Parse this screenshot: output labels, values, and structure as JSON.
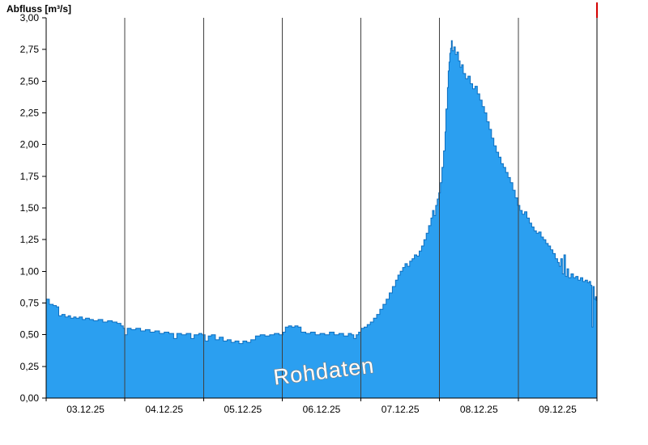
{
  "chart_data": {
    "type": "area",
    "title": "Abfluss [m³/s]",
    "watermark": "Rohdaten",
    "xlabel": "",
    "ylabel": "Abfluss [m³/s]",
    "ylim": [
      0,
      3
    ],
    "x_range_days": 7,
    "x_labels": [
      "03.12.25",
      "04.12.25",
      "05.12.25",
      "06.12.25",
      "07.12.25",
      "08.12.25",
      "09.12.25"
    ],
    "grid_days": [
      1,
      2,
      3,
      4,
      5,
      6
    ],
    "y_ticks": [
      {
        "v": 0.0,
        "label": "0,00"
      },
      {
        "v": 0.25,
        "label": "0,25"
      },
      {
        "v": 0.5,
        "label": "0,50"
      },
      {
        "v": 0.75,
        "label": "0,75"
      },
      {
        "v": 1.0,
        "label": "1,00"
      },
      {
        "v": 1.25,
        "label": "1,25"
      },
      {
        "v": 1.5,
        "label": "1,50"
      },
      {
        "v": 1.75,
        "label": "1,75"
      },
      {
        "v": 2.0,
        "label": "2,00"
      },
      {
        "v": 2.25,
        "label": "2,25"
      },
      {
        "v": 2.5,
        "label": "2,50"
      },
      {
        "v": 2.75,
        "label": "2,75"
      },
      {
        "v": 3.0,
        "label": "3,00"
      }
    ],
    "series": [
      {
        "name": "Abfluss Rohdaten",
        "unit": "m³/s",
        "points": [
          [
            0.0,
            0.78
          ],
          [
            0.04,
            0.74
          ],
          [
            0.09,
            0.73
          ],
          [
            0.13,
            0.72
          ],
          [
            0.16,
            0.65
          ],
          [
            0.2,
            0.66
          ],
          [
            0.24,
            0.64
          ],
          [
            0.28,
            0.65
          ],
          [
            0.31,
            0.63
          ],
          [
            0.35,
            0.64
          ],
          [
            0.38,
            0.63
          ],
          [
            0.42,
            0.64
          ],
          [
            0.46,
            0.62
          ],
          [
            0.5,
            0.63
          ],
          [
            0.55,
            0.62
          ],
          [
            0.6,
            0.61
          ],
          [
            0.66,
            0.62
          ],
          [
            0.72,
            0.6
          ],
          [
            0.78,
            0.61
          ],
          [
            0.84,
            0.6
          ],
          [
            0.9,
            0.59
          ],
          [
            0.95,
            0.57
          ],
          [
            0.98,
            0.55
          ],
          [
            1.0,
            0.5
          ],
          [
            1.03,
            0.55
          ],
          [
            1.08,
            0.54
          ],
          [
            1.14,
            0.55
          ],
          [
            1.2,
            0.53
          ],
          [
            1.26,
            0.54
          ],
          [
            1.32,
            0.52
          ],
          [
            1.38,
            0.53
          ],
          [
            1.44,
            0.51
          ],
          [
            1.5,
            0.52
          ],
          [
            1.56,
            0.51
          ],
          [
            1.62,
            0.47
          ],
          [
            1.66,
            0.51
          ],
          [
            1.72,
            0.5
          ],
          [
            1.78,
            0.51
          ],
          [
            1.84,
            0.47
          ],
          [
            1.88,
            0.5
          ],
          [
            1.94,
            0.51
          ],
          [
            1.98,
            0.5
          ],
          [
            2.02,
            0.45
          ],
          [
            2.06,
            0.49
          ],
          [
            2.1,
            0.5
          ],
          [
            2.15,
            0.46
          ],
          [
            2.2,
            0.48
          ],
          [
            2.25,
            0.45
          ],
          [
            2.3,
            0.46
          ],
          [
            2.35,
            0.44
          ],
          [
            2.4,
            0.45
          ],
          [
            2.45,
            0.43
          ],
          [
            2.5,
            0.45
          ],
          [
            2.55,
            0.44
          ],
          [
            2.6,
            0.46
          ],
          [
            2.66,
            0.49
          ],
          [
            2.72,
            0.5
          ],
          [
            2.78,
            0.49
          ],
          [
            2.84,
            0.5
          ],
          [
            2.9,
            0.51
          ],
          [
            2.96,
            0.5
          ],
          [
            3.01,
            0.52
          ],
          [
            3.04,
            0.56
          ],
          [
            3.08,
            0.57
          ],
          [
            3.12,
            0.56
          ],
          [
            3.16,
            0.57
          ],
          [
            3.2,
            0.56
          ],
          [
            3.24,
            0.52
          ],
          [
            3.3,
            0.51
          ],
          [
            3.36,
            0.52
          ],
          [
            3.42,
            0.5
          ],
          [
            3.48,
            0.51
          ],
          [
            3.54,
            0.5
          ],
          [
            3.6,
            0.52
          ],
          [
            3.66,
            0.5
          ],
          [
            3.72,
            0.51
          ],
          [
            3.78,
            0.49
          ],
          [
            3.84,
            0.51
          ],
          [
            3.88,
            0.5
          ],
          [
            3.91,
            0.47
          ],
          [
            3.94,
            0.5
          ],
          [
            3.97,
            0.52
          ],
          [
            4.0,
            0.55
          ],
          [
            4.04,
            0.56
          ],
          [
            4.08,
            0.58
          ],
          [
            4.12,
            0.6
          ],
          [
            4.16,
            0.63
          ],
          [
            4.2,
            0.66
          ],
          [
            4.24,
            0.7
          ],
          [
            4.28,
            0.74
          ],
          [
            4.32,
            0.78
          ],
          [
            4.36,
            0.83
          ],
          [
            4.4,
            0.88
          ],
          [
            4.44,
            0.93
          ],
          [
            4.47,
            0.97
          ],
          [
            4.5,
            1.0
          ],
          [
            4.53,
            1.03
          ],
          [
            4.56,
            1.06
          ],
          [
            4.59,
            1.04
          ],
          [
            4.62,
            1.08
          ],
          [
            4.65,
            1.1
          ],
          [
            4.68,
            1.13
          ],
          [
            4.71,
            1.12
          ],
          [
            4.74,
            1.16
          ],
          [
            4.77,
            1.2
          ],
          [
            4.8,
            1.25
          ],
          [
            4.83,
            1.3
          ],
          [
            4.86,
            1.36
          ],
          [
            4.89,
            1.42
          ],
          [
            4.91,
            1.48
          ],
          [
            4.93,
            1.44
          ],
          [
            4.95,
            1.52
          ],
          [
            4.97,
            1.57
          ],
          [
            4.99,
            1.62
          ],
          [
            5.01,
            1.7
          ],
          [
            5.03,
            1.82
          ],
          [
            5.05,
            1.95
          ],
          [
            5.07,
            2.1
          ],
          [
            5.08,
            2.28
          ],
          [
            5.1,
            2.45
          ],
          [
            5.11,
            2.58
          ],
          [
            5.12,
            2.65
          ],
          [
            5.13,
            2.72
          ],
          [
            5.14,
            2.76
          ],
          [
            5.15,
            2.82
          ],
          [
            5.16,
            2.74
          ],
          [
            5.18,
            2.77
          ],
          [
            5.2,
            2.71
          ],
          [
            5.22,
            2.73
          ],
          [
            5.24,
            2.66
          ],
          [
            5.26,
            2.61
          ],
          [
            5.28,
            2.63
          ],
          [
            5.3,
            2.56
          ],
          [
            5.33,
            2.52
          ],
          [
            5.36,
            2.54
          ],
          [
            5.39,
            2.48
          ],
          [
            5.42,
            2.44
          ],
          [
            5.45,
            2.46
          ],
          [
            5.48,
            2.4
          ],
          [
            5.51,
            2.35
          ],
          [
            5.54,
            2.3
          ],
          [
            5.57,
            2.25
          ],
          [
            5.6,
            2.18
          ],
          [
            5.63,
            2.12
          ],
          [
            5.66,
            2.05
          ],
          [
            5.69,
            1.99
          ],
          [
            5.72,
            1.94
          ],
          [
            5.75,
            1.9
          ],
          [
            5.78,
            1.85
          ],
          [
            5.81,
            1.82
          ],
          [
            5.84,
            1.78
          ],
          [
            5.87,
            1.74
          ],
          [
            5.9,
            1.7
          ],
          [
            5.93,
            1.64
          ],
          [
            5.96,
            1.58
          ],
          [
            5.99,
            1.52
          ],
          [
            6.02,
            1.48
          ],
          [
            6.05,
            1.45
          ],
          [
            6.08,
            1.47
          ],
          [
            6.11,
            1.42
          ],
          [
            6.14,
            1.38
          ],
          [
            6.17,
            1.35
          ],
          [
            6.2,
            1.32
          ],
          [
            6.23,
            1.3
          ],
          [
            6.26,
            1.31
          ],
          [
            6.29,
            1.27
          ],
          [
            6.32,
            1.25
          ],
          [
            6.35,
            1.22
          ],
          [
            6.38,
            1.2
          ],
          [
            6.41,
            1.17
          ],
          [
            6.44,
            1.14
          ],
          [
            6.47,
            1.1
          ],
          [
            6.5,
            1.07
          ],
          [
            6.52,
            1.04
          ],
          [
            6.54,
            1.1
          ],
          [
            6.56,
            0.98
          ],
          [
            6.58,
            1.13
          ],
          [
            6.6,
            0.96
          ],
          [
            6.62,
            1.02
          ],
          [
            6.64,
            0.95
          ],
          [
            6.67,
            0.98
          ],
          [
            6.7,
            0.95
          ],
          [
            6.73,
            0.96
          ],
          [
            6.76,
            0.93
          ],
          [
            6.79,
            0.95
          ],
          [
            6.82,
            0.92
          ],
          [
            6.85,
            0.93
          ],
          [
            6.88,
            0.91
          ],
          [
            6.9,
            0.92
          ],
          [
            6.92,
            0.89
          ],
          [
            6.935,
            0.56
          ],
          [
            6.95,
            0.88
          ],
          [
            6.965,
            0.78
          ],
          [
            6.98,
            0.8
          ],
          [
            6.99,
            0.77
          ],
          [
            7.0,
            0.8
          ]
        ]
      }
    ]
  },
  "colors": {
    "fill": "#2b9ff0",
    "stroke": "#0d6fc0",
    "grid": "#404040",
    "axis": "#000000",
    "label": "#000000",
    "watermark_fill": "#ffffff",
    "watermark_outline": "#808080",
    "marker_red": "#d40000"
  }
}
